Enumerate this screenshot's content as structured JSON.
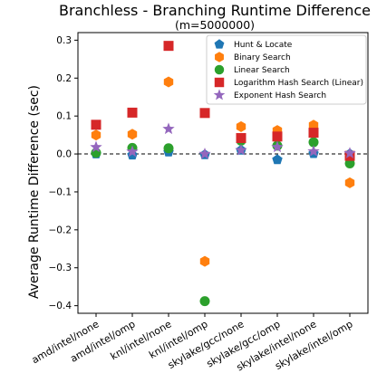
{
  "chart_data": {
    "type": "scatter",
    "title": "Branchless - Branching Runtime Difference",
    "subtitle": "(m=5000000)",
    "xlabel": "",
    "ylabel": "Average Runtime Difference (sec)",
    "categories": [
      "amd/intel/none",
      "amd/intel/omp",
      "knl/intel/none",
      "knl/intel/omp",
      "skylake/gcc/none",
      "skylake/gcc/omp",
      "skylake/intel/none",
      "skylake/intel/omp"
    ],
    "ylim": [
      -0.42,
      0.32
    ],
    "yticks": [
      -0.4,
      -0.3,
      -0.2,
      -0.1,
      0.0,
      0.1,
      0.2,
      0.3
    ],
    "ytick_labels": [
      "−0.4",
      "−0.3",
      "−0.2",
      "−0.1",
      "0.0",
      "0.1",
      "0.2",
      "0.3"
    ],
    "zero_line": true,
    "grid": false,
    "legend_position": "top-right",
    "series": [
      {
        "name": "Hunt & Locate",
        "marker": "pentagon",
        "color": "#1f77b4",
        "values": [
          0.0,
          -0.003,
          0.005,
          -0.002,
          0.01,
          -0.015,
          0.001,
          0.0
        ]
      },
      {
        "name": "Binary Search",
        "marker": "hexagon",
        "color": "#ff7f0e",
        "values": [
          0.05,
          0.052,
          0.19,
          -0.283,
          0.072,
          0.062,
          0.076,
          -0.076
        ]
      },
      {
        "name": "Linear Search",
        "marker": "circle",
        "color": "#2ca02c",
        "values": [
          0.003,
          0.016,
          0.015,
          -0.388,
          0.035,
          0.022,
          0.031,
          -0.025
        ]
      },
      {
        "name": "Logarithm Hash Search (Linear)",
        "marker": "square",
        "color": "#d62728",
        "values": [
          0.077,
          0.109,
          0.285,
          0.108,
          0.042,
          0.046,
          0.056,
          -0.005
        ]
      },
      {
        "name": "Exponent Hash Search",
        "marker": "star",
        "color": "#9467bd",
        "values": [
          0.018,
          0.006,
          0.066,
          0.0,
          0.01,
          0.018,
          0.007,
          0.002
        ]
      }
    ]
  }
}
